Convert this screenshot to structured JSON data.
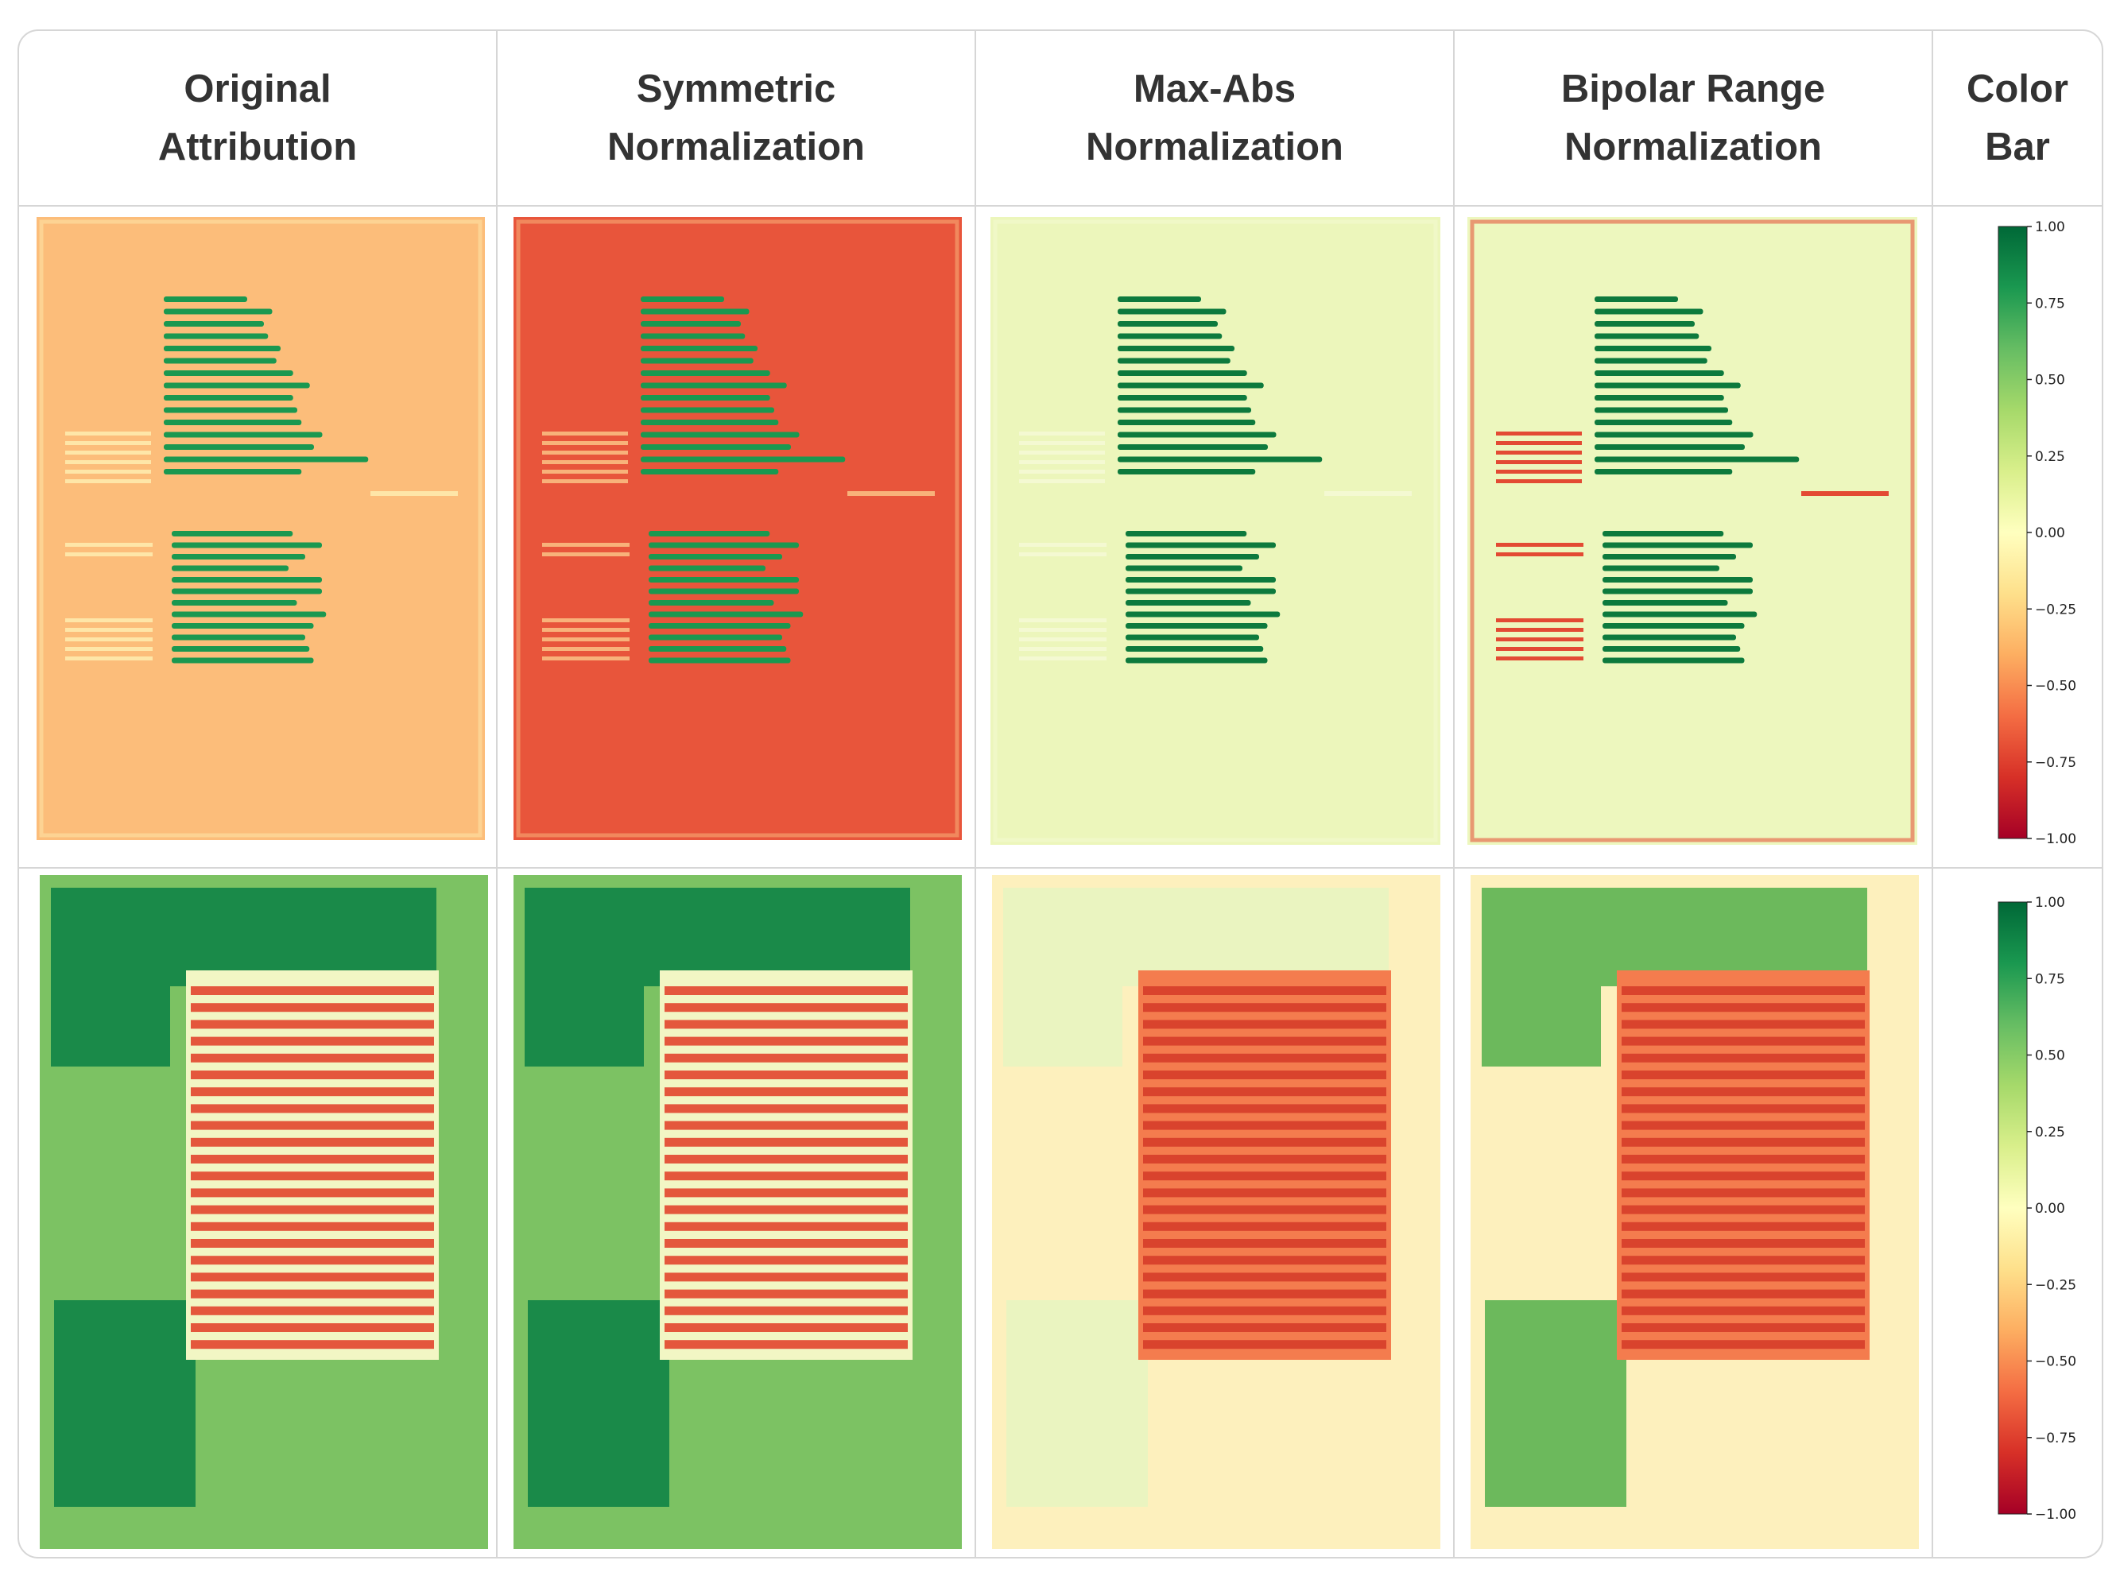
{
  "columns": [
    {
      "line1": "Original",
      "line2": "Attribution"
    },
    {
      "line1": "Symmetric",
      "line2": "Normalization"
    },
    {
      "line1": "Max-Abs",
      "line2": "Normalization"
    },
    {
      "line1": "Bipolar Range",
      "line2": "Normalization"
    },
    {
      "line1": "Color",
      "line2": "Bar"
    }
  ],
  "colorbar": {
    "colormap": "RdYlGn",
    "range": [
      -1.0,
      1.0
    ],
    "ticks": [
      "1.00",
      "0.75",
      "0.50",
      "0.25",
      "0.00",
      "−0.25",
      "−0.50",
      "−0.75",
      "−1.00"
    ],
    "colors": [
      "#006837",
      "#1a9850",
      "#66bd63",
      "#a6d96a",
      "#d9ef8b",
      "#ffffbf",
      "#fee08b",
      "#fdae61",
      "#f46d43",
      "#d73027",
      "#a50026"
    ]
  },
  "rows": [
    {
      "panels": [
        {
          "background": "#fcbd7a",
          "text": "#1a9850",
          "structure": "#fee6a8"
        },
        {
          "background": "#e8553b",
          "text": "#1a9850",
          "structure": "#f8b27a"
        },
        {
          "background": "#ecf6bb",
          "text": "#0d7a3d",
          "structure": "#f4f9d2"
        },
        {
          "background": "#edf7be",
          "text": "#0d7a3d",
          "structure": "#e34a33"
        }
      ]
    },
    {
      "panels": [
        {
          "background": "#7cc263",
          "block": "#1a8a49",
          "stripe_a": "#e4573c",
          "stripe_b": "#f2f6c4"
        },
        {
          "background": "#7cc263",
          "block": "#1a8a49",
          "stripe_a": "#e4573c",
          "stripe_b": "#f2f6c4"
        },
        {
          "background": "#fdf0bd",
          "block": "#eaf4c0",
          "stripe_a": "#d9432d",
          "stripe_b": "#f47c4e"
        },
        {
          "background": "#fdf0bd",
          "block": "#6cb95c",
          "stripe_a": "#d9432d",
          "stripe_b": "#f47c4e"
        }
      ]
    }
  ]
}
